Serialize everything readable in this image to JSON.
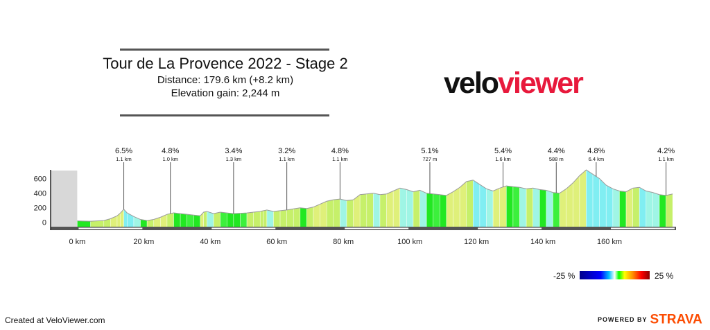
{
  "header": {
    "title": "Tour de La Provence 2022 - Stage 2",
    "distance": "Distance: 179.6 km (+8.2 km)",
    "elevation_gain": "Elevation gain: 2,244 m"
  },
  "logo": {
    "part1": "velo",
    "part2": "viewer"
  },
  "legend": {
    "min_label": "-25 %",
    "max_label": "25 %"
  },
  "footer": {
    "created": "Created at VeloViewer.com",
    "powered_by": "POWERED BY",
    "brand": "STRAVA"
  },
  "chart_data": {
    "type": "area",
    "title": "Tour de La Provence 2022 - Stage 2",
    "xlabel": "",
    "ylabel": "",
    "x_ticks": [
      "0 km",
      "20 km",
      "40 km",
      "60 km",
      "80 km",
      "100 km",
      "120 km",
      "140 km",
      "160 km"
    ],
    "x_tick_values": [
      0,
      20,
      40,
      60,
      80,
      100,
      120,
      140,
      160
    ],
    "y_ticks": [
      "0",
      "200",
      "400",
      "600"
    ],
    "y_tick_values": [
      0,
      200,
      400,
      600
    ],
    "xlim": [
      -8,
      180
    ],
    "ylim": [
      -50,
      720
    ],
    "profile": {
      "x": [
        -8,
        0,
        4,
        8,
        10,
        12,
        13,
        14,
        15,
        17,
        19,
        21,
        23,
        25,
        27,
        29,
        31,
        33,
        35,
        37,
        38,
        39,
        41,
        43,
        45,
        47,
        49,
        51,
        53,
        55,
        56,
        57,
        59,
        61,
        63,
        65,
        67,
        69,
        71,
        73,
        75,
        77,
        79,
        81,
        83,
        85,
        87,
        89,
        91,
        93,
        95,
        97,
        99,
        101,
        103,
        105,
        107,
        109,
        111,
        113,
        115,
        117,
        119,
        121,
        123,
        125,
        127,
        129,
        131,
        133,
        135,
        137,
        139,
        141,
        143,
        145,
        147,
        149,
        151,
        153,
        155,
        157,
        159,
        161,
        163,
        165,
        167,
        169,
        171,
        173,
        175,
        177,
        179
      ],
      "y": [
        20,
        20,
        15,
        25,
        50,
        90,
        130,
        180,
        130,
        80,
        40,
        25,
        40,
        70,
        110,
        130,
        120,
        110,
        100,
        90,
        140,
        150,
        120,
        140,
        130,
        120,
        125,
        130,
        140,
        150,
        160,
        170,
        150,
        160,
        170,
        185,
        200,
        190,
        210,
        250,
        290,
        310,
        320,
        300,
        310,
        380,
        390,
        400,
        380,
        390,
        430,
        470,
        450,
        420,
        440,
        400,
        390,
        380,
        370,
        420,
        480,
        560,
        580,
        520,
        460,
        430,
        470,
        500,
        490,
        480,
        460,
        470,
        450,
        440,
        410,
        400,
        460,
        540,
        640,
        720,
        660,
        600,
        510,
        460,
        430,
        420,
        470,
        480,
        430,
        410,
        380,
        370,
        390
      ]
    },
    "climbs": [
      {
        "gradient": "6.5%",
        "length": "1.1 km",
        "km": 14
      },
      {
        "gradient": "4.8%",
        "length": "1.0 km",
        "km": 28
      },
      {
        "gradient": "3.4%",
        "length": "1.3 km",
        "km": 47
      },
      {
        "gradient": "3.2%",
        "length": "1.1 km",
        "km": 63
      },
      {
        "gradient": "4.8%",
        "length": "1.1 km",
        "km": 79
      },
      {
        "gradient": "5.1%",
        "length": "727 m",
        "km": 106
      },
      {
        "gradient": "5.4%",
        "length": "1.6 km",
        "km": 128
      },
      {
        "gradient": "4.4%",
        "length": "588 m",
        "km": 144
      },
      {
        "gradient": "4.8%",
        "length": "6.4 km",
        "km": 156
      },
      {
        "gradient": "4.2%",
        "length": "1.1 km",
        "km": 177
      }
    ],
    "colors": {
      "flat": "#22e822",
      "gentle_up": "#dff07a",
      "gentle_down": "#9ff5e5",
      "descent": "#80eef2",
      "grey_zone": "#d8d8d8",
      "baseline": "#555555"
    }
  }
}
